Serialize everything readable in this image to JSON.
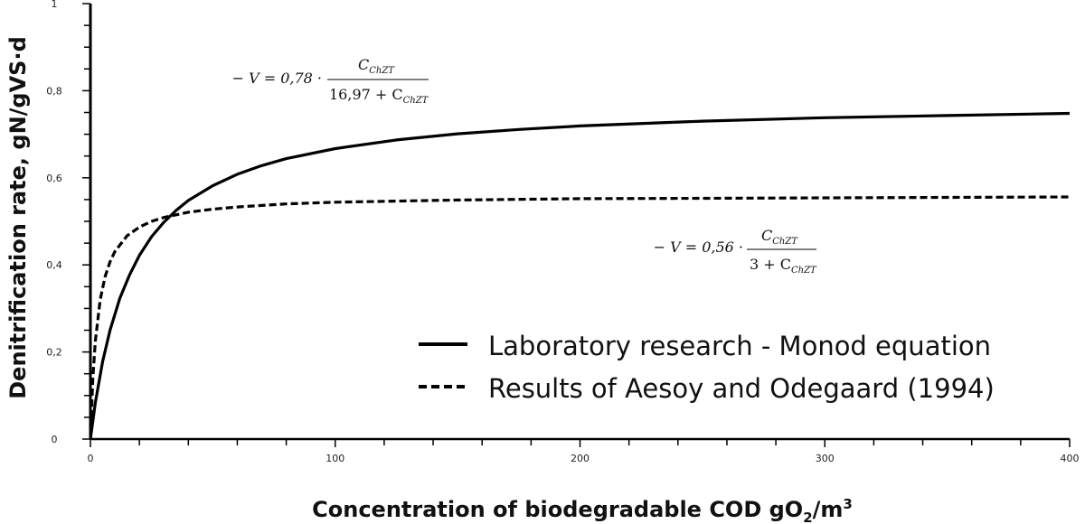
{
  "chart_data": {
    "type": "line",
    "xlabel": "Concentration of biodegradable COD gO",
    "xlabel_sub": "2",
    "xlabel_unit": "/m",
    "xlabel_sup": "3",
    "ylabel": "Denitrification rate, gN/gVS·d",
    "xlim": [
      0,
      400
    ],
    "ylim": [
      0,
      1
    ],
    "x_ticks": [
      "0",
      "100",
      "200",
      "300",
      "400"
    ],
    "y_ticks": [
      "0",
      "0,2",
      "0,4",
      "0,6",
      "0,8",
      "1"
    ],
    "grid": false,
    "legend_position": "bottom-right",
    "series": [
      {
        "name": "Laboratory research - Monod equation",
        "style": "solid",
        "color": "#000000",
        "vmax": 0.78,
        "ks": 16.97,
        "x": [
          0,
          2,
          5,
          8,
          12,
          16,
          20,
          25,
          30,
          35,
          40,
          50,
          60,
          70,
          80,
          100,
          125,
          150,
          175,
          200,
          250,
          300,
          350,
          400
        ],
        "values": [
          0.0,
          0.083,
          0.178,
          0.25,
          0.323,
          0.377,
          0.422,
          0.465,
          0.498,
          0.525,
          0.548,
          0.582,
          0.608,
          0.628,
          0.644,
          0.667,
          0.687,
          0.701,
          0.711,
          0.719,
          0.73,
          0.738,
          0.743,
          0.748
        ]
      },
      {
        "name": "Results of Aesoy and Odegaard (1994)",
        "style": "dashed",
        "color": "#000000",
        "vmax": 0.56,
        "ks": 3,
        "x": [
          0,
          1,
          2,
          4,
          6,
          8,
          10,
          15,
          20,
          25,
          30,
          40,
          50,
          60,
          80,
          100,
          150,
          200,
          250,
          300,
          350,
          400
        ],
        "values": [
          0.0,
          0.14,
          0.224,
          0.32,
          0.373,
          0.407,
          0.431,
          0.467,
          0.487,
          0.5,
          0.509,
          0.521,
          0.528,
          0.533,
          0.54,
          0.544,
          0.549,
          0.552,
          0.553,
          0.554,
          0.555,
          0.556
        ]
      }
    ],
    "annotations": [
      {
        "lhs": "− V = 0,78 ·",
        "numerator": "C",
        "sub": "ChZT",
        "denominator_prefix": "16,97 + C",
        "denominator_sub": "ChZT"
      },
      {
        "lhs": "− V = 0,56 ·",
        "numerator": "C",
        "sub": "ChZT",
        "denominator_prefix": "3 + C",
        "denominator_sub": "ChZT"
      }
    ]
  }
}
